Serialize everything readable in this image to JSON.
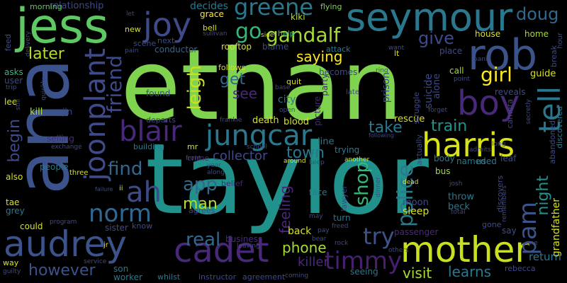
{
  "words": [
    {
      "text": "ethan",
      "color": "#7fd34e",
      "o": "h"
    },
    {
      "text": "taylor",
      "color": "#21918c",
      "o": "h"
    },
    {
      "text": "ana",
      "color": "#3b528b",
      "o": "v"
    },
    {
      "text": "jess",
      "color": "#5ec962",
      "o": "h"
    },
    {
      "text": "mother",
      "color": "#c8e020",
      "o": "h"
    },
    {
      "text": "rob",
      "color": "#3b528b",
      "o": "h"
    },
    {
      "text": "seymour",
      "color": "#2a788e",
      "o": "h"
    },
    {
      "text": "audrey",
      "color": "#3b528b",
      "o": "h"
    },
    {
      "text": "jungcar",
      "color": "#2a788e",
      "o": "h"
    },
    {
      "text": "harris",
      "color": "#d8e219",
      "o": "h"
    },
    {
      "text": "boy",
      "color": "#482878",
      "o": "h"
    },
    {
      "text": "cadet",
      "color": "#482878",
      "o": "h"
    },
    {
      "text": "joonplant",
      "color": "#3e4a89",
      "o": "v"
    },
    {
      "text": "blair",
      "color": "#482878",
      "o": "h"
    },
    {
      "text": "joy",
      "color": "#3e4a89",
      "o": "h"
    },
    {
      "text": "ah",
      "color": "#3e4a89",
      "o": "h"
    },
    {
      "text": "tell",
      "color": "#2a788e",
      "o": "v"
    },
    {
      "text": "greene",
      "color": "#2a788e",
      "o": "h"
    },
    {
      "text": "gandalf",
      "color": "#a5db36",
      "o": "h"
    },
    {
      "text": "timmy",
      "color": "#481f70",
      "o": "h"
    },
    {
      "text": "norm",
      "color": "#31688e",
      "o": "h"
    },
    {
      "text": "friend",
      "color": "#3e4a89",
      "o": "v"
    },
    {
      "text": "pam",
      "color": "#3b528b",
      "o": "v"
    },
    {
      "text": "police",
      "color": "#2a788e",
      "o": "v"
    },
    {
      "text": "try",
      "color": "#3b528b",
      "o": "h"
    },
    {
      "text": "real",
      "color": "#31688e",
      "o": "h"
    },
    {
      "text": "app",
      "color": "#31688e",
      "o": "h"
    },
    {
      "text": "doug",
      "color": "#31688e",
      "o": "h"
    },
    {
      "text": "leigh",
      "color": "#c8e020",
      "o": "v"
    },
    {
      "text": "go",
      "color": "#35b779",
      "o": "h"
    },
    {
      "text": "girl",
      "color": "#fde725",
      "o": "h"
    },
    {
      "text": "find",
      "color": "#31688e",
      "o": "h"
    },
    {
      "text": "later",
      "color": "#b5de2b",
      "o": "h"
    },
    {
      "text": "give",
      "color": "#3e4a89",
      "o": "h"
    },
    {
      "text": "man",
      "color": "#b5de2b",
      "o": "h"
    },
    {
      "text": "shop",
      "color": "#35b779",
      "o": "v"
    },
    {
      "text": "town",
      "color": "#2a788e",
      "o": "h"
    },
    {
      "text": "train",
      "color": "#21918c",
      "o": "h"
    },
    {
      "text": "take",
      "color": "#2a788e",
      "o": "h"
    },
    {
      "text": "however",
      "color": "#3b528b",
      "o": "h"
    },
    {
      "text": "get",
      "color": "#31688e",
      "o": "h"
    },
    {
      "text": "visit",
      "color": "#a5db36",
      "o": "h"
    },
    {
      "text": "learns",
      "color": "#2a788e",
      "o": "h"
    },
    {
      "text": "phone",
      "color": "#a5db36",
      "o": "h"
    },
    {
      "text": "killer",
      "color": "#482878",
      "o": "h"
    },
    {
      "text": "night",
      "color": "#21918c",
      "o": "v"
    },
    {
      "text": "begin",
      "color": "#3e4a89",
      "o": "v"
    },
    {
      "text": "saying",
      "color": "#fde725",
      "o": "h"
    },
    {
      "text": "collector",
      "color": "#3e4a89",
      "o": "h"
    },
    {
      "text": "feeling",
      "color": "#482878",
      "o": "v"
    },
    {
      "text": "see",
      "color": "#482878",
      "o": "h"
    },
    {
      "text": "decides",
      "color": "#2a788e",
      "o": "h"
    },
    {
      "text": "relationship",
      "color": "#3e4a89",
      "o": "h"
    },
    {
      "text": "morning",
      "color": "#5ec962",
      "o": "h"
    },
    {
      "text": "grace",
      "color": "#fde725",
      "o": "h"
    },
    {
      "text": "kiki",
      "color": "#b5de2b",
      "o": "h"
    },
    {
      "text": "flying",
      "color": "#7fd34e",
      "o": "h"
    },
    {
      "text": "return",
      "color": "#2a788e",
      "o": "h"
    },
    {
      "text": "son",
      "color": "#2a788e",
      "o": "h"
    },
    {
      "text": "worker",
      "color": "#2a788e",
      "o": "h"
    },
    {
      "text": "business",
      "color": "#482878",
      "o": "h"
    },
    {
      "text": "back",
      "color": "#d8e219",
      "o": "h"
    },
    {
      "text": "sleep",
      "color": "#d8e219",
      "o": "h"
    },
    {
      "text": "throw",
      "color": "#2a788e",
      "o": "h"
    },
    {
      "text": "beck",
      "color": "#2a788e",
      "o": "h"
    },
    {
      "text": "moon",
      "color": "#3e4a89",
      "o": "h"
    },
    {
      "text": "city",
      "color": "#2a788e",
      "o": "h"
    },
    {
      "text": "blood",
      "color": "#d8e219",
      "o": "h"
    },
    {
      "text": "rescue",
      "color": "#d8e219",
      "o": "h"
    },
    {
      "text": "death",
      "color": "#d8e219",
      "o": "h"
    },
    {
      "text": "line",
      "color": "#2a788e",
      "o": "h"
    },
    {
      "text": "trying",
      "color": "#2a788e",
      "o": "h"
    },
    {
      "text": "bus",
      "color": "#a5db36",
      "o": "h"
    },
    {
      "text": "leaf",
      "color": "#3e4a89",
      "o": "h"
    },
    {
      "text": "used",
      "color": "#2a788e",
      "o": "h"
    },
    {
      "text": "named",
      "color": "#2a788e",
      "o": "h"
    },
    {
      "text": "body",
      "color": "#2a788e",
      "o": "h"
    },
    {
      "text": "prison",
      "color": "#3e4a89",
      "o": "v"
    },
    {
      "text": "suicide",
      "color": "#3e4a89",
      "o": "v"
    },
    {
      "text": "alone",
      "color": "#3e4a89",
      "o": "v"
    },
    {
      "text": "call",
      "color": "#a5db36",
      "o": "h"
    },
    {
      "text": "guide",
      "color": "#d8e219",
      "o": "h"
    },
    {
      "text": "reveals",
      "color": "#3e4a89",
      "o": "h"
    },
    {
      "text": "house",
      "color": "#d8e219",
      "o": "h"
    },
    {
      "text": "home",
      "color": "#a5db36",
      "o": "h"
    },
    {
      "text": "place",
      "color": "#3e4a89",
      "o": "h"
    },
    {
      "text": "becomes",
      "color": "#3e4a89",
      "o": "h"
    },
    {
      "text": "follows",
      "color": "#d8e219",
      "o": "h"
    },
    {
      "text": "quit",
      "color": "#d8e219",
      "o": "h"
    },
    {
      "text": "rooftop",
      "color": "#d8e219",
      "o": "h"
    },
    {
      "text": "blame",
      "color": "#3e4a89",
      "o": "h"
    },
    {
      "text": "help",
      "color": "#35b779",
      "o": "h"
    },
    {
      "text": "attack",
      "color": "#2a788e",
      "o": "h"
    },
    {
      "text": "conductor",
      "color": "#31688e",
      "o": "h"
    },
    {
      "text": "scene",
      "color": "#3e4a89",
      "o": "h"
    },
    {
      "text": "next",
      "color": "#3e4a89",
      "o": "h"
    },
    {
      "text": "bell",
      "color": "#d8e219",
      "o": "h"
    },
    {
      "text": "new",
      "color": "#d8e219",
      "o": "h"
    },
    {
      "text": "found",
      "color": "#3e4a89",
      "o": "h"
    },
    {
      "text": "kill",
      "color": "#b5de2b",
      "o": "h"
    },
    {
      "text": "jin",
      "color": "#3e4a89",
      "o": "h"
    },
    {
      "text": "selling",
      "color": "#482878",
      "o": "h"
    },
    {
      "text": "building",
      "color": "#2a788e",
      "o": "h"
    },
    {
      "text": "crime",
      "color": "#482878",
      "o": "h"
    },
    {
      "text": "people",
      "color": "#2a788e",
      "o": "h"
    },
    {
      "text": "three",
      "color": "#d8e219",
      "o": "h"
    },
    {
      "text": "also",
      "color": "#d8e219",
      "o": "h"
    },
    {
      "text": "tae",
      "color": "#d8e219",
      "o": "h"
    },
    {
      "text": "grey",
      "color": "#2a788e",
      "o": "h"
    },
    {
      "text": "could",
      "color": "#d8e219",
      "o": "h"
    },
    {
      "text": "way",
      "color": "#d8e219",
      "o": "h"
    },
    {
      "text": "program",
      "color": "#3e4a89",
      "o": "h"
    },
    {
      "text": "sister",
      "color": "#3e4a89",
      "o": "h"
    },
    {
      "text": "know",
      "color": "#3e4a89",
      "o": "h"
    },
    {
      "text": "agrees",
      "color": "#3e4a89",
      "o": "h"
    },
    {
      "text": "belief",
      "color": "#482878",
      "o": "h"
    },
    {
      "text": "turn",
      "color": "#2a788e",
      "o": "h"
    },
    {
      "text": "face",
      "color": "#2a788e",
      "o": "h"
    },
    {
      "text": "seeing",
      "color": "#2a788e",
      "o": "h"
    },
    {
      "text": "asks",
      "color": "#35b779",
      "o": "h"
    },
    {
      "text": "user",
      "color": "#3e4a89",
      "o": "h"
    },
    {
      "text": "lee",
      "color": "#d8e219",
      "o": "h"
    },
    {
      "text": "mr",
      "color": "#d8e219",
      "o": "h"
    },
    {
      "text": "frankie",
      "color": "#3e4a89",
      "o": "h"
    },
    {
      "text": "departs",
      "color": "#3e4a89",
      "o": "h"
    },
    {
      "text": "instructor",
      "color": "#3e4a89",
      "o": "h"
    },
    {
      "text": "agreement",
      "color": "#3e4a89",
      "o": "h"
    },
    {
      "text": "whilst",
      "color": "#2a788e",
      "o": "h"
    },
    {
      "text": "passenger",
      "color": "#482878",
      "o": "h"
    },
    {
      "text": "gone",
      "color": "#3e4a89",
      "o": "h"
    },
    {
      "text": "say",
      "color": "#3e4a89",
      "o": "h"
    },
    {
      "text": "rebecca",
      "color": "#3e4a89",
      "o": "h"
    },
    {
      "text": "grandfather",
      "color": "#d8e219",
      "o": "v"
    },
    {
      "text": "discovered",
      "color": "#2a788e",
      "o": "v"
    },
    {
      "text": "abandoned",
      "color": "#3e4a89",
      "o": "v"
    },
    {
      "text": "camera",
      "color": "#3e4a89",
      "o": "v"
    },
    {
      "text": "lawyer",
      "color": "#3e4a89",
      "o": "v"
    },
    {
      "text": "discovers",
      "color": "#3e4a89",
      "o": "v"
    },
    {
      "text": "picture",
      "color": "#482878",
      "o": "v"
    },
    {
      "text": "party",
      "color": "#482878",
      "o": "v"
    },
    {
      "text": "actually",
      "color": "#3e4a89",
      "o": "v"
    },
    {
      "text": "struggle",
      "color": "#3e4a89",
      "o": "v"
    },
    {
      "text": "break",
      "color": "#3e4a89",
      "o": "v"
    },
    {
      "text": "hour",
      "color": "#3e4a89",
      "o": "v"
    },
    {
      "text": "feed",
      "color": "#3e4a89",
      "o": "v"
    },
    {
      "text": "lt",
      "color": "#d8e219",
      "o": "h"
    },
    {
      "text": "late",
      "color": "#3e4a89",
      "o": "h"
    },
    {
      "text": "let",
      "color": "#3e4a89",
      "o": "h"
    },
    {
      "text": "side",
      "color": "#d8e219",
      "o": "h"
    },
    {
      "text": "sullivan",
      "color": "#3e4a89",
      "o": "h"
    },
    {
      "text": "want",
      "color": "#3e4a89",
      "o": "h"
    },
    {
      "text": "panic",
      "color": "#3e4a89",
      "o": "h"
    },
    {
      "text": "dead",
      "color": "#d8e219",
      "o": "h"
    },
    {
      "text": "pay",
      "color": "#3e4a89",
      "o": "h"
    },
    {
      "text": "bear",
      "color": "#3e4a89",
      "o": "h"
    },
    {
      "text": "freed",
      "color": "#3e4a89",
      "o": "h"
    },
    {
      "text": "rock",
      "color": "#3e4a89",
      "o": "h"
    },
    {
      "text": "total",
      "color": "#3e4a89",
      "o": "h"
    },
    {
      "text": "josh",
      "color": "#3e4a89",
      "o": "h"
    },
    {
      "text": "one",
      "color": "#3e4a89",
      "o": "h"
    },
    {
      "text": "ii",
      "color": "#d8e219",
      "o": "h"
    },
    {
      "text": "jr",
      "color": "#d8e219",
      "o": "h"
    },
    {
      "text": "leaving",
      "color": "#3e4a89",
      "o": "h"
    },
    {
      "text": "coming",
      "color": "#3e4a89",
      "o": "h"
    },
    {
      "text": "open",
      "color": "#3e4a89",
      "o": "h"
    },
    {
      "text": "ring",
      "color": "#3e4a89",
      "o": "h"
    },
    {
      "text": "year",
      "color": "#3e4a89",
      "o": "h"
    },
    {
      "text": "along",
      "color": "#3e4a89",
      "o": "h"
    },
    {
      "text": "front",
      "color": "#3e4a89",
      "o": "h"
    },
    {
      "text": "school",
      "color": "#3e4a89",
      "o": "h"
    },
    {
      "text": "around",
      "color": "#d8e219",
      "o": "h"
    },
    {
      "text": "keep",
      "color": "#3e4a89",
      "o": "h"
    },
    {
      "text": "another",
      "color": "#d8e219",
      "o": "h"
    },
    {
      "text": "following",
      "color": "#3e4a89",
      "o": "h"
    },
    {
      "text": "may",
      "color": "#3e4a89",
      "o": "h"
    },
    {
      "text": "others",
      "color": "#3e4a89",
      "o": "h"
    },
    {
      "text": "point",
      "color": "#3e4a89",
      "o": "h"
    },
    {
      "text": "base",
      "color": "#3e4a89",
      "o": "h"
    },
    {
      "text": "forget",
      "color": "#3e4a89",
      "o": "h"
    },
    {
      "text": "pain",
      "color": "#3e4a89",
      "o": "h"
    },
    {
      "text": "delivery",
      "color": "#3e4a89",
      "o": "v"
    },
    {
      "text": "quickly",
      "color": "#3e4a89",
      "o": "v"
    },
    {
      "text": "trip",
      "color": "#3e4a89",
      "o": "h"
    },
    {
      "text": "still",
      "color": "#3e4a89",
      "o": "v"
    },
    {
      "text": "exchange",
      "color": "#3e4a89",
      "o": "h"
    },
    {
      "text": "failure",
      "color": "#3e4a89",
      "o": "h"
    },
    {
      "text": "guilty",
      "color": "#3e4a89",
      "o": "h"
    },
    {
      "text": "service",
      "color": "#3e4a89",
      "o": "h"
    },
    {
      "text": "admits",
      "color": "#3e4a89",
      "o": "h"
    },
    {
      "text": "secretly",
      "color": "#3e4a89",
      "o": "v"
    },
    {
      "text": "long",
      "color": "#3e4a89",
      "o": "h"
    },
    {
      "text": "remembers",
      "color": "#3e4a89",
      "o": "v"
    },
    {
      "text": "dinner",
      "color": "#3e4a89",
      "o": "v"
    }
  ]
}
